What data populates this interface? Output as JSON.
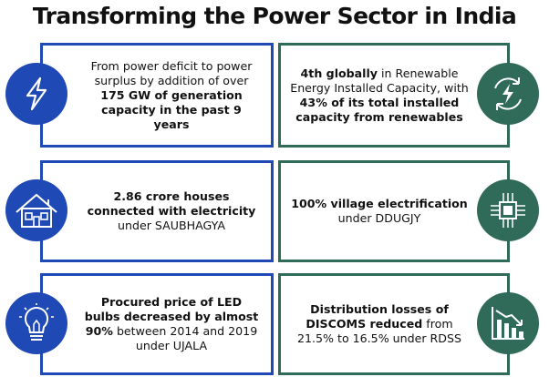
{
  "title": "Transforming the Power Sector in India",
  "colors": {
    "blue": "#1f49b4",
    "green": "#2f6b58"
  },
  "cards": [
    {
      "icon": "lightning-bolt-icon",
      "parts": [
        {
          "t": "From power deficit to power surplus by addition of over ",
          "b": false
        },
        {
          "t": "175 GW of generation capacity in the past 9 years",
          "b": true
        }
      ]
    },
    {
      "icon": "renewable-energy-icon",
      "parts": [
        {
          "t": "4th globally",
          "b": true
        },
        {
          "t": " in Renewable Energy Installed Capacity, with ",
          "b": false
        },
        {
          "t": "43% of its total installed capacity from renewables",
          "b": true
        }
      ]
    },
    {
      "icon": "house-icon",
      "parts": [
        {
          "t": "2.86 crore houses connected with electricity",
          "b": true
        },
        {
          "t": " under SAUBHAGYA",
          "b": false
        }
      ]
    },
    {
      "icon": "circuit-chip-icon",
      "parts": [
        {
          "t": "100% village electrification",
          "b": true
        },
        {
          "t": " under DDUGJY",
          "b": false
        }
      ]
    },
    {
      "icon": "light-bulb-icon",
      "parts": [
        {
          "t": "Procured price of LED bulbs decreased by almost 90%",
          "b": true
        },
        {
          "t": " between 2014 and 2019 under UJALA",
          "b": false
        }
      ]
    },
    {
      "icon": "declining-chart-icon",
      "parts": [
        {
          "t": "Distribution losses of DISCOMS reduced",
          "b": true
        },
        {
          "t": " from 21.5% to 16.5% under RDSS",
          "b": false
        }
      ]
    }
  ]
}
